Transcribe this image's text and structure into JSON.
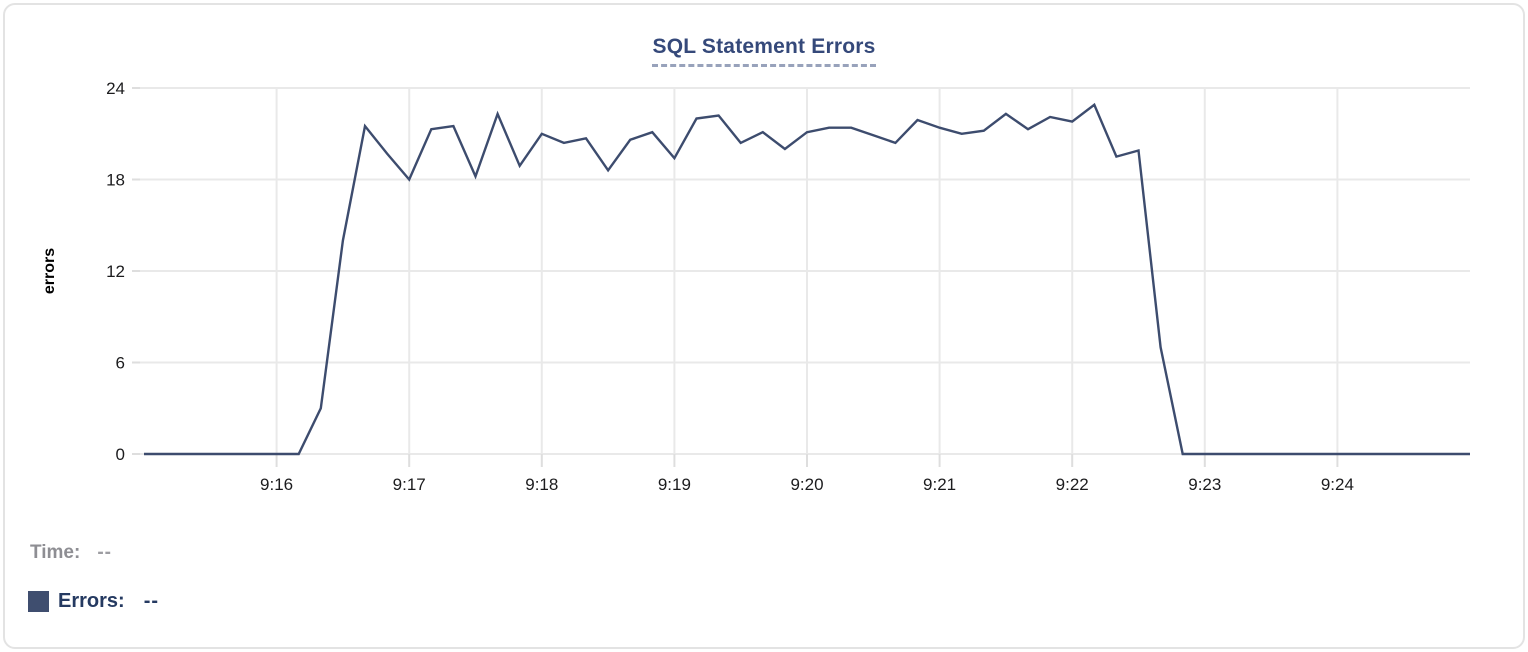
{
  "card": {
    "title": "SQL Statement Errors"
  },
  "tooltip": {
    "time_label": "Time:",
    "time_value": "--",
    "errors_label": "Errors:",
    "errors_value": "--"
  },
  "colors": {
    "line": "#3d4c6e",
    "swatch": "#3f4e6f",
    "title": "#35497a",
    "grid": "#e9e9e9",
    "axis_tick": "#dedede",
    "tick_text": "#1c1c1e"
  },
  "chart_data": {
    "type": "line",
    "title": "SQL Statement Errors",
    "xlabel": "",
    "ylabel": "errors",
    "ylim": [
      0,
      24
    ],
    "yticks": [
      0,
      6,
      12,
      18,
      24
    ],
    "xticks": [
      "9:16",
      "9:17",
      "9:18",
      "9:19",
      "9:20",
      "9:21",
      "9:22",
      "9:23",
      "9:24"
    ],
    "grid": true,
    "legend_position": "bottom-left",
    "x": [
      "9:15:00",
      "9:15:10",
      "9:15:20",
      "9:15:30",
      "9:15:40",
      "9:15:50",
      "9:16:00",
      "9:16:10",
      "9:16:20",
      "9:16:30",
      "9:16:40",
      "9:16:50",
      "9:17:00",
      "9:17:10",
      "9:17:20",
      "9:17:30",
      "9:17:40",
      "9:17:50",
      "9:18:00",
      "9:18:10",
      "9:18:20",
      "9:18:30",
      "9:18:40",
      "9:18:50",
      "9:19:00",
      "9:19:10",
      "9:19:20",
      "9:19:30",
      "9:19:40",
      "9:19:50",
      "9:20:00",
      "9:20:10",
      "9:20:20",
      "9:20:30",
      "9:20:40",
      "9:20:50",
      "9:21:00",
      "9:21:10",
      "9:21:20",
      "9:21:30",
      "9:21:40",
      "9:21:50",
      "9:22:00",
      "9:22:10",
      "9:22:20",
      "9:22:30",
      "9:22:40",
      "9:22:50",
      "9:23:00",
      "9:23:10",
      "9:23:20",
      "9:23:30",
      "9:23:40",
      "9:23:50",
      "9:24:00",
      "9:24:10",
      "9:24:20",
      "9:24:30",
      "9:24:40",
      "9:24:50",
      "9:25:00"
    ],
    "series": [
      {
        "name": "Errors",
        "color": "#3d4c6e",
        "values": [
          0,
          0,
          0,
          0,
          0,
          0,
          0,
          0,
          3,
          14,
          21.5,
          19.7,
          18,
          21.3,
          21.5,
          18.2,
          22.3,
          18.9,
          21,
          20.4,
          20.7,
          18.6,
          20.6,
          21.1,
          19.4,
          22,
          22.2,
          20.4,
          21.1,
          20,
          21.1,
          21.4,
          21.4,
          20.9,
          20.4,
          21.9,
          21.4,
          21,
          21.2,
          22.3,
          21.3,
          22.1,
          21.8,
          22.9,
          19.5,
          19.9,
          7,
          0,
          0,
          0,
          0,
          0,
          0,
          0,
          0,
          0,
          0,
          0,
          0,
          0,
          0
        ]
      }
    ]
  }
}
